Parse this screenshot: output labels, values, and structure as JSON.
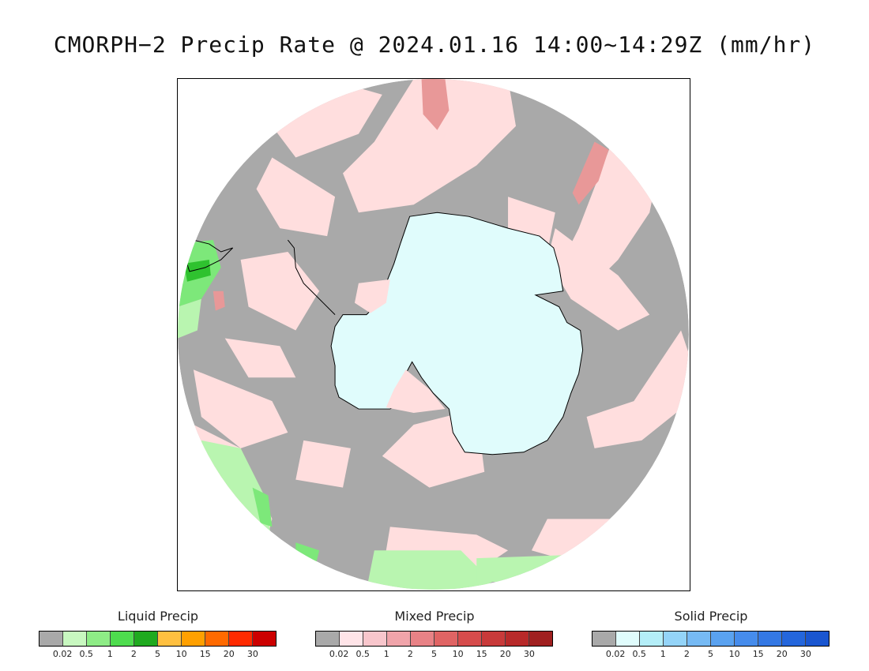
{
  "title": "CMORPH−2 Precip Rate @ 2024.01.16 14:00~14:29Z (mm/hr)",
  "map": {
    "projection": "south-polar-stereographic",
    "colors": {
      "no_precip": "#a9a9a9",
      "ice_sheet": "#e0fcfc",
      "mixed_light": "#ffdede",
      "mixed_mid": "#e89898",
      "mixed_heavy": "#d06a6a",
      "liquid_light": "#b9f5b0",
      "liquid_mid": "#7de87a",
      "liquid_heavy": "#2fc22f",
      "coastline": "#000000"
    }
  },
  "legends": [
    {
      "title": "Liquid Precip",
      "colors": [
        "#a9a9a9",
        "#c8f8c0",
        "#8eec86",
        "#4edc4e",
        "#1faa1f",
        "#ffc040",
        "#ffa000",
        "#ff6a00",
        "#ff2a00",
        "#cc0000"
      ],
      "ticks": [
        "0.02",
        "0.5",
        "1",
        "2",
        "5",
        "10",
        "15",
        "20",
        "30"
      ]
    },
    {
      "title": "Mixed Precip",
      "colors": [
        "#a9a9a9",
        "#ffe4e8",
        "#f8c6cc",
        "#f0a4aa",
        "#e88286",
        "#e06464",
        "#d64c4c",
        "#c83a3a",
        "#b82a2a",
        "#a02020"
      ],
      "ticks": [
        "0.02",
        "0.5",
        "1",
        "2",
        "5",
        "10",
        "15",
        "20",
        "30"
      ]
    },
    {
      "title": "Solid Precip",
      "colors": [
        "#a9a9a9",
        "#e0fcfc",
        "#b4eef8",
        "#94d4f8",
        "#76baf4",
        "#5aa2f0",
        "#468cec",
        "#3478e4",
        "#2466dc",
        "#1a56d0"
      ],
      "ticks": [
        "0.02",
        "0.5",
        "1",
        "2",
        "5",
        "10",
        "15",
        "20",
        "30"
      ]
    }
  ]
}
